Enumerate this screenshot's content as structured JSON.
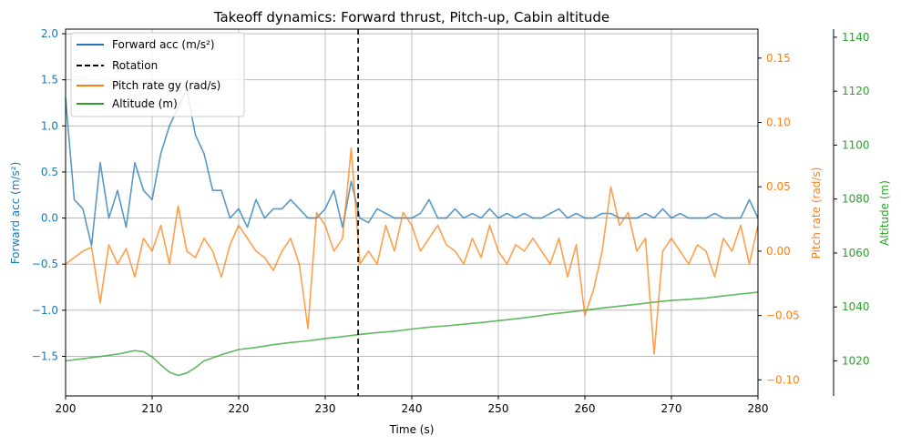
{
  "chart_data": {
    "type": "line",
    "title": "Takeoff dynamics: Forward thrust, Pitch-up, Cabin altitude",
    "xlabel": "Time (s)",
    "xlim": [
      200,
      280
    ],
    "x_ticks": [
      200,
      210,
      220,
      230,
      240,
      250,
      260,
      270,
      280
    ],
    "grid": true,
    "legend_position": "top-left",
    "axes": {
      "left": {
        "label": "Forward acc (m/s²)",
        "color": "#1f77b4",
        "ylim": [
          -1.93,
          2.05
        ],
        "ticks": [
          -1.5,
          -1.0,
          -0.5,
          0.0,
          0.5,
          1.0,
          1.5,
          2.0
        ],
        "tick_labels": [
          "−1.5",
          "−1.0",
          "−0.5",
          "0.0",
          "0.5",
          "1.0",
          "1.5",
          "2.0"
        ]
      },
      "right": {
        "label": "Pitch rate (rad/s)",
        "color": "#ff7f0e",
        "ylim": [
          -0.1125,
          0.1725
        ],
        "ticks": [
          -0.1,
          -0.05,
          0.0,
          0.05,
          0.1,
          0.15
        ],
        "tick_labels": [
          "−0.10",
          "−0.05",
          "0.00",
          "0.05",
          "0.10",
          "0.15"
        ]
      },
      "right_outer": {
        "label": "Altitude (m)",
        "color": "#2ca02c",
        "ylim": [
          1007,
          1143
        ],
        "ticks": [
          1020,
          1040,
          1060,
          1080,
          1100,
          1120,
          1140
        ],
        "tick_labels": [
          "1020",
          "1040",
          "1060",
          "1080",
          "1100",
          "1120",
          "1140"
        ]
      }
    },
    "annotations": [
      {
        "type": "vline",
        "x": 233.8,
        "label": "Rotation",
        "color": "#000000",
        "style": "dashed"
      }
    ],
    "series": [
      {
        "name": "Forward acc (m/s²)",
        "axis": "left",
        "color": "#1f77b4",
        "x": [
          200,
          201,
          202,
          203,
          204,
          205,
          206,
          207,
          208,
          209,
          210,
          211,
          212,
          213,
          214,
          215,
          216,
          217,
          218,
          219,
          220,
          221,
          222,
          223,
          224,
          225,
          226,
          227,
          228,
          229,
          230,
          231,
          232,
          233,
          234,
          235,
          236,
          237,
          238,
          239,
          240,
          241,
          242,
          243,
          244,
          245,
          246,
          247,
          248,
          249,
          250,
          251,
          252,
          253,
          254,
          255,
          256,
          257,
          258,
          259,
          260,
          261,
          262,
          263,
          264,
          265,
          266,
          267,
          268,
          269,
          270,
          271,
          272,
          273,
          274,
          275,
          276,
          277,
          278,
          279,
          280
        ],
        "values": [
          1.3,
          0.2,
          0.1,
          -0.3,
          0.6,
          0.0,
          0.3,
          -0.1,
          0.6,
          0.3,
          0.2,
          0.7,
          1.0,
          1.2,
          1.4,
          0.9,
          0.7,
          0.3,
          0.3,
          0.0,
          0.1,
          -0.1,
          0.2,
          0.0,
          0.1,
          0.1,
          0.2,
          0.1,
          0.0,
          0.0,
          0.1,
          0.3,
          -0.1,
          0.4,
          0.0,
          -0.05,
          0.1,
          0.05,
          0.0,
          0.0,
          0.0,
          0.05,
          0.2,
          0.0,
          0.0,
          0.1,
          0.0,
          0.05,
          0.0,
          0.1,
          0.0,
          0.05,
          0.0,
          0.05,
          0.0,
          0.0,
          0.05,
          0.1,
          0.0,
          0.05,
          0.0,
          0.0,
          0.05,
          0.05,
          0.0,
          0.0,
          0.0,
          0.05,
          0.0,
          0.1,
          0.0,
          0.05,
          0.0,
          0.0,
          0.0,
          0.05,
          0.0,
          0.0,
          0.0,
          0.2,
          0.0
        ]
      },
      {
        "name": "Pitch rate gy (rad/s)",
        "axis": "right",
        "color": "#ff7f0e",
        "x": [
          200,
          201,
          202,
          203,
          204,
          205,
          206,
          207,
          208,
          209,
          210,
          211,
          212,
          213,
          214,
          215,
          216,
          217,
          218,
          219,
          220,
          221,
          222,
          223,
          224,
          225,
          226,
          227,
          228,
          229,
          230,
          231,
          232,
          233,
          234,
          235,
          236,
          237,
          238,
          239,
          240,
          241,
          242,
          243,
          244,
          245,
          246,
          247,
          248,
          249,
          250,
          251,
          252,
          253,
          254,
          255,
          256,
          257,
          258,
          259,
          260,
          261,
          262,
          263,
          264,
          265,
          266,
          267,
          268,
          269,
          270,
          271,
          272,
          273,
          274,
          275,
          276,
          277,
          278,
          279,
          280
        ],
        "values": [
          -0.01,
          -0.005,
          0.0,
          0.003,
          -0.04,
          0.005,
          -0.01,
          0.002,
          -0.02,
          0.01,
          0.0,
          0.02,
          -0.01,
          0.035,
          0.0,
          -0.005,
          0.01,
          0.0,
          -0.02,
          0.005,
          0.02,
          0.01,
          0.0,
          -0.005,
          -0.015,
          0.0,
          0.01,
          -0.01,
          -0.06,
          0.03,
          0.02,
          0.0,
          0.01,
          0.08,
          -0.01,
          0.0,
          -0.01,
          0.02,
          0.0,
          0.03,
          0.02,
          0.0,
          0.01,
          0.02,
          0.005,
          0.0,
          -0.01,
          0.01,
          -0.005,
          0.02,
          0.0,
          -0.01,
          0.005,
          0.0,
          0.01,
          0.0,
          -0.01,
          0.01,
          -0.02,
          0.005,
          -0.05,
          -0.03,
          0.0,
          0.05,
          0.02,
          0.03,
          0.0,
          0.01,
          -0.08,
          0.0,
          0.01,
          0.0,
          -0.01,
          0.005,
          0.0,
          -0.02,
          0.01,
          0.0,
          0.02,
          -0.01,
          0.02
        ]
      },
      {
        "name": "Altitude (m)",
        "axis": "right_outer",
        "color": "#2ca02c",
        "x": [
          200,
          202,
          204,
          206,
          208,
          209,
          210,
          211,
          212,
          213,
          214,
          215,
          216,
          218,
          220,
          222,
          224,
          226,
          228,
          230,
          232,
          234,
          236,
          238,
          240,
          242,
          244,
          246,
          248,
          250,
          252,
          254,
          256,
          258,
          260,
          262,
          264,
          266,
          268,
          270,
          272,
          274,
          276,
          278,
          280
        ],
        "values": [
          1020.0,
          1020.8,
          1021.6,
          1022.5,
          1023.8,
          1023.4,
          1021.5,
          1018.5,
          1015.8,
          1014.6,
          1015.5,
          1017.5,
          1020.0,
          1022.3,
          1024.2,
          1025.0,
          1026.0,
          1026.8,
          1027.4,
          1028.3,
          1029.0,
          1029.8,
          1030.5,
          1031.0,
          1031.8,
          1032.5,
          1033.0,
          1033.6,
          1034.2,
          1034.9,
          1035.6,
          1036.4,
          1037.3,
          1038.0,
          1038.8,
          1039.6,
          1040.3,
          1041.0,
          1041.8,
          1042.4,
          1042.8,
          1043.3,
          1044.1,
          1044.8,
          1045.5
        ]
      }
    ]
  }
}
